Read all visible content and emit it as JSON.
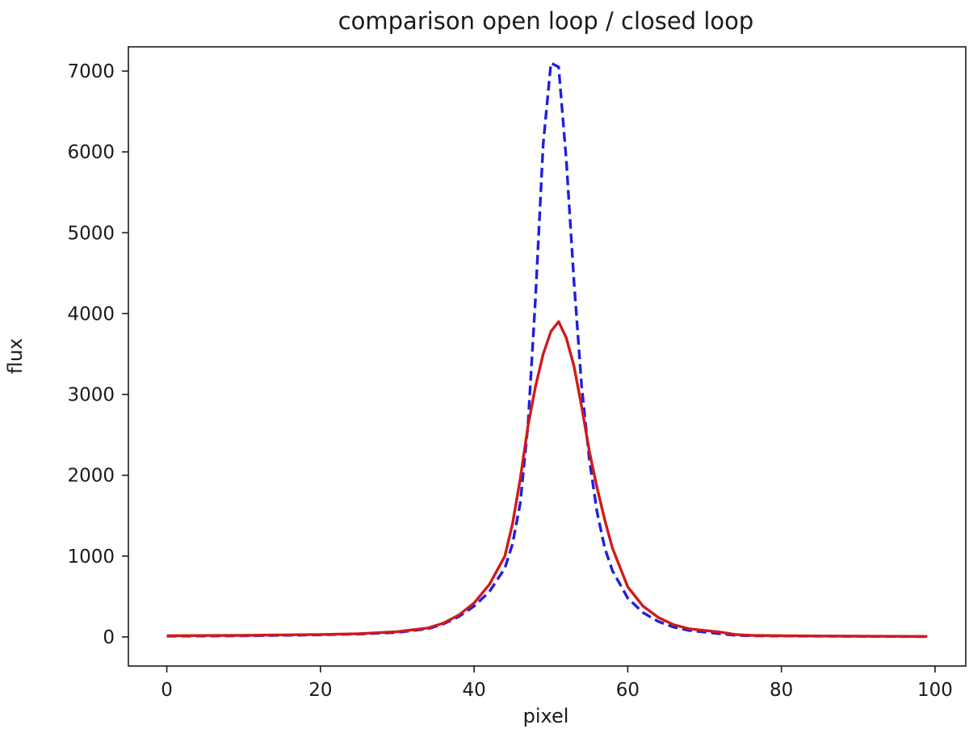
{
  "chart_data": {
    "type": "line",
    "title": "comparison open loop / closed loop",
    "xlabel": "pixel",
    "ylabel": "flux",
    "xlim": [
      -5,
      104
    ],
    "ylim": [
      -360,
      7300
    ],
    "xticks": [
      0,
      20,
      40,
      60,
      80,
      100
    ],
    "yticks": [
      0,
      1000,
      2000,
      3000,
      4000,
      5000,
      6000,
      7000
    ],
    "grid": false,
    "legend": "none",
    "series": [
      {
        "style": "dashed",
        "color": "#1f1fe0",
        "x": [
          0,
          5,
          10,
          15,
          20,
          25,
          30,
          34,
          36,
          38,
          40,
          42,
          44,
          45,
          46,
          47,
          48,
          49,
          50,
          51,
          52,
          53,
          54,
          55,
          56,
          57,
          58,
          60,
          62,
          64,
          66,
          68,
          70,
          72,
          74,
          76,
          80,
          85,
          90,
          95,
          99
        ],
        "y": [
          10,
          12,
          15,
          20,
          25,
          35,
          55,
          100,
          160,
          250,
          380,
          560,
          850,
          1150,
          1650,
          2600,
          4200,
          6100,
          7100,
          7050,
          5900,
          4400,
          3100,
          2200,
          1550,
          1100,
          820,
          480,
          300,
          190,
          120,
          80,
          60,
          40,
          20,
          15,
          12,
          10,
          8,
          6,
          5
        ]
      },
      {
        "style": "solid",
        "color": "#d11a1a",
        "x": [
          0,
          5,
          10,
          15,
          20,
          25,
          30,
          34,
          36,
          38,
          40,
          42,
          44,
          45,
          46,
          47,
          48,
          49,
          50,
          51,
          52,
          53,
          54,
          55,
          56,
          57,
          58,
          60,
          62,
          64,
          66,
          68,
          70,
          72,
          74,
          76,
          80,
          85,
          90,
          95,
          99
        ],
        "y": [
          15,
          18,
          20,
          25,
          30,
          40,
          65,
          110,
          170,
          270,
          420,
          650,
          1000,
          1400,
          1950,
          2600,
          3100,
          3500,
          3780,
          3900,
          3700,
          3350,
          2850,
          2300,
          1850,
          1450,
          1100,
          620,
          380,
          240,
          150,
          100,
          80,
          60,
          30,
          20,
          15,
          12,
          10,
          8,
          6
        ]
      }
    ]
  }
}
